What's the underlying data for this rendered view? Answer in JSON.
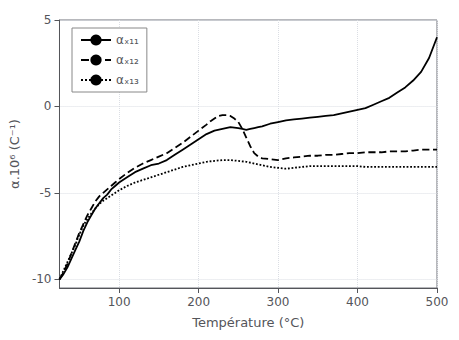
{
  "chart_data": {
    "type": "line",
    "xlabel": "Température (°C)",
    "ylabel": "α.10⁶ (C⁻¹)",
    "xlim": [
      25,
      500
    ],
    "ylim": [
      -10.5,
      5
    ],
    "xticks": [
      100,
      200,
      300,
      400,
      500
    ],
    "yticks": [
      -10,
      -5,
      0,
      5
    ],
    "grid": true,
    "legend": "upper-left",
    "series": [
      {
        "name": "αₓ₁₁",
        "color": "black",
        "line_style": "solid",
        "x": [
          25,
          30,
          35,
          40,
          45,
          50,
          55,
          60,
          65,
          70,
          75,
          80,
          85,
          90,
          95,
          100,
          110,
          120,
          130,
          140,
          150,
          160,
          170,
          180,
          190,
          200,
          210,
          220,
          230,
          240,
          250,
          255,
          260,
          265,
          270,
          275,
          280,
          290,
          300,
          310,
          320,
          330,
          340,
          350,
          360,
          370,
          380,
          390,
          400,
          410,
          420,
          430,
          440,
          450,
          460,
          470,
          480,
          490,
          500
        ],
        "values": [
          -10.0,
          -9.7,
          -9.3,
          -8.8,
          -8.3,
          -7.8,
          -7.2,
          -6.7,
          -6.3,
          -5.9,
          -5.6,
          -5.3,
          -5.1,
          -4.8,
          -4.6,
          -4.4,
          -4.1,
          -3.8,
          -3.6,
          -3.4,
          -3.3,
          -3.1,
          -2.8,
          -2.5,
          -2.2,
          -1.9,
          -1.6,
          -1.4,
          -1.3,
          -1.2,
          -1.25,
          -1.3,
          -1.35,
          -1.3,
          -1.25,
          -1.2,
          -1.15,
          -1.0,
          -0.9,
          -0.8,
          -0.75,
          -0.7,
          -0.65,
          -0.6,
          -0.55,
          -0.5,
          -0.4,
          -0.3,
          -0.2,
          -0.1,
          0.1,
          0.3,
          0.5,
          0.8,
          1.1,
          1.5,
          2.0,
          2.8,
          4.0
        ]
      },
      {
        "name": "αₓ₁₂",
        "color": "black",
        "line_style": "dashed",
        "x": [
          25,
          30,
          35,
          40,
          45,
          50,
          55,
          60,
          65,
          70,
          75,
          80,
          85,
          90,
          95,
          100,
          110,
          120,
          130,
          140,
          150,
          160,
          170,
          180,
          190,
          200,
          210,
          215,
          220,
          225,
          230,
          235,
          240,
          245,
          250,
          255,
          260,
          265,
          270,
          275,
          280,
          290,
          300,
          310,
          320,
          330,
          340,
          350,
          360,
          370,
          380,
          390,
          400,
          410,
          420,
          430,
          440,
          450,
          460,
          470,
          480,
          490,
          500
        ],
        "values": [
          -10.0,
          -9.6,
          -9.1,
          -8.5,
          -7.9,
          -7.3,
          -6.8,
          -6.3,
          -5.9,
          -5.5,
          -5.2,
          -5.0,
          -4.8,
          -4.6,
          -4.4,
          -4.2,
          -3.85,
          -3.55,
          -3.3,
          -3.1,
          -2.9,
          -2.7,
          -2.4,
          -2.1,
          -1.75,
          -1.4,
          -1.05,
          -0.85,
          -0.7,
          -0.55,
          -0.5,
          -0.5,
          -0.55,
          -0.7,
          -0.9,
          -1.3,
          -1.8,
          -2.3,
          -2.7,
          -2.9,
          -3.0,
          -3.05,
          -3.1,
          -3.0,
          -2.95,
          -2.9,
          -2.85,
          -2.85,
          -2.8,
          -2.8,
          -2.75,
          -2.7,
          -2.7,
          -2.65,
          -2.65,
          -2.65,
          -2.6,
          -2.6,
          -2.6,
          -2.55,
          -2.5,
          -2.5,
          -2.5
        ]
      },
      {
        "name": "αₓ₁₃",
        "color": "black",
        "line_style": "dotted",
        "x": [
          25,
          30,
          35,
          40,
          45,
          50,
          55,
          60,
          65,
          70,
          75,
          80,
          85,
          90,
          95,
          100,
          110,
          120,
          130,
          140,
          150,
          160,
          170,
          180,
          190,
          200,
          210,
          220,
          230,
          240,
          250,
          260,
          270,
          280,
          290,
          300,
          310,
          320,
          330,
          340,
          350,
          360,
          370,
          380,
          390,
          400,
          410,
          420,
          430,
          440,
          450,
          460,
          470,
          480,
          490,
          500
        ],
        "values": [
          -10.0,
          -9.5,
          -9.0,
          -8.5,
          -8.0,
          -7.4,
          -6.9,
          -6.5,
          -6.2,
          -5.9,
          -5.65,
          -5.45,
          -5.3,
          -5.15,
          -5.0,
          -4.85,
          -4.6,
          -4.4,
          -4.25,
          -4.1,
          -3.95,
          -3.8,
          -3.65,
          -3.5,
          -3.4,
          -3.3,
          -3.2,
          -3.15,
          -3.1,
          -3.1,
          -3.15,
          -3.2,
          -3.3,
          -3.4,
          -3.5,
          -3.55,
          -3.6,
          -3.55,
          -3.5,
          -3.45,
          -3.45,
          -3.45,
          -3.45,
          -3.45,
          -3.45,
          -3.45,
          -3.5,
          -3.5,
          -3.5,
          -3.5,
          -3.5,
          -3.5,
          -3.5,
          -3.5,
          -3.5,
          -3.5
        ]
      }
    ]
  }
}
